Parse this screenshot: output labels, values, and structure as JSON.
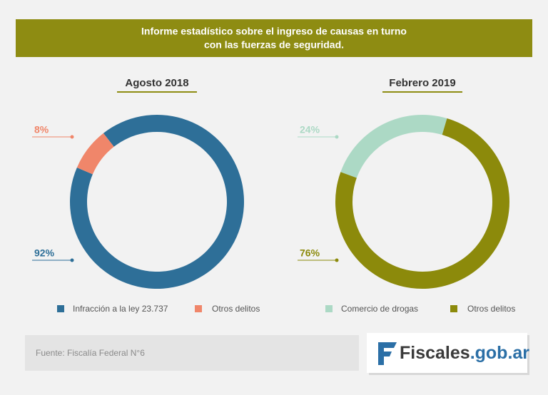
{
  "header": {
    "title": [
      "Informe estadístico sobre el ingreso de causas en turno",
      "con las fuerzas de seguridad."
    ]
  },
  "chart_data": [
    {
      "type": "pie",
      "title": "Agosto 2018",
      "categories": [
        "Infracción a la ley 23.737",
        "Otros delitos"
      ],
      "values": [
        92,
        8
      ],
      "value_labels": [
        "92%",
        "8%"
      ],
      "colors": [
        "#2e6f98",
        "#f0866a"
      ]
    },
    {
      "type": "pie",
      "title": "Febrero 2019",
      "categories": [
        "Comercio de drogas",
        "Otros delitos"
      ],
      "values": [
        24,
        76
      ],
      "value_labels": [
        "24%",
        "76%"
      ],
      "colors": [
        "#acd9c5",
        "#8c8a0b"
      ]
    }
  ],
  "footer": {
    "source": "Fuente: Fiscalía Federal N°6",
    "logo": [
      "Fiscales",
      ".gob.ar"
    ]
  }
}
